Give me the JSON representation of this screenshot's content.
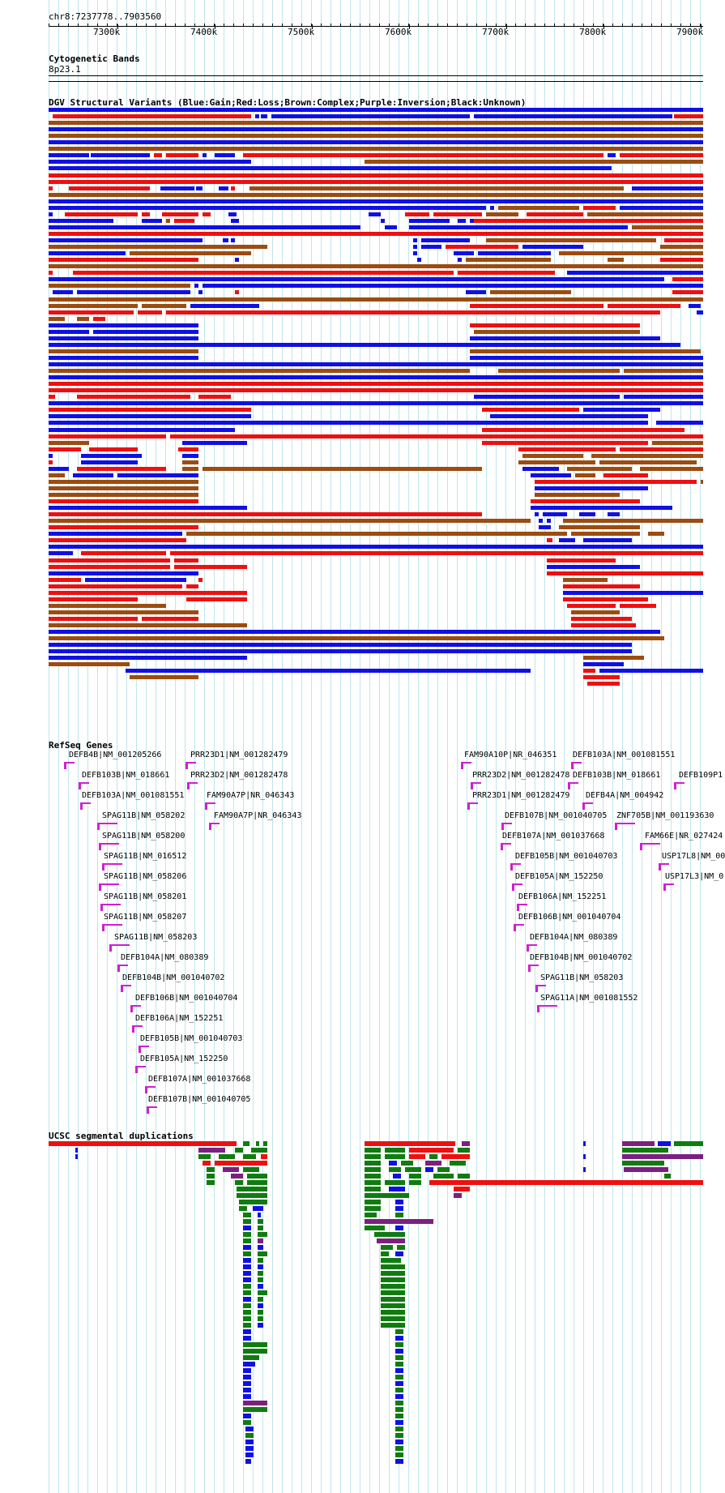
{
  "ruler": {
    "position": "chr8:7237778..7903560",
    "ticks": [
      "7300k",
      "7400k",
      "7500k",
      "7600k",
      "7700k",
      "7800k",
      "7900k"
    ]
  },
  "cytoband": {
    "title": "Cytogenetic Bands",
    "band": "8p23.1"
  },
  "dgv": {
    "title": "DGV Structural Variants (Blue:Gain;Red:Loss;Brown:Complex;Purple:Inversion;Black:Unknown)"
  },
  "refseq": {
    "title": "RefSeq Genes",
    "genes": [
      "DEFB4B|NM_001205266",
      "DEFB103B|NM_018661",
      "DEFB103A|NM_001081551",
      "SPAG11B|NM_058202",
      "SPAG11B|NM_058200",
      "SPAG11B|NM_016512",
      "SPAG11B|NM_058206",
      "SPAG11B|NM_058201",
      "SPAG11B|NM_058207",
      "SPAG11B|NM_058203",
      "DEFB104A|NM_080389",
      "DEFB104B|NM_001040702",
      "DEFB106B|NM_001040704",
      "DEFB106A|NM_152251",
      "DEFB105B|NM_001040703",
      "DEFB105A|NM_152250",
      "DEFB107A|NM_001037668",
      "DEFB107B|NM_001040705",
      "PRR23D1|NM_001282479",
      "PRR23D2|NM_001282478",
      "FAM90A7P|NR_046343",
      "FAM90A7P|NR_046343",
      "FAM90A10P|NR_046351",
      "PRR23D2|NM_001282478",
      "PRR23D1|NM_001282479",
      "DEFB107B|NM_001040705",
      "DEFB107A|NM_001037668",
      "DEFB105B|NM_001040703",
      "DEFB105A|NM_152250",
      "DEFB106A|NM_152251",
      "DEFB106B|NM_001040704",
      "DEFB104A|NM_080389",
      "DEFB104B|NM_001040702",
      "SPAG11B|NM_058203",
      "SPAG11A|NM_001081552",
      "DEFB103A|NM_001081551",
      "DEFB103B|NM_018661",
      "DEFB4A|NM_004942",
      "ZNF705B|NM_001193630",
      "FAM66E|NR_027424",
      "USP17L8|NM_00",
      "USP17L3|NM_0",
      "DEFB109P1"
    ]
  },
  "segdups": {
    "title": "UCSC segmental duplications"
  },
  "colors": {
    "gain": "#1010e6",
    "loss": "#ee1010",
    "complex": "#9c4c10",
    "gene": "#d020d0",
    "segGreen": "#107c10",
    "segPurple": "#7c2080",
    "segBlue": "#1010e6",
    "segRed": "#ee1010",
    "grid": "#bfe6ec"
  }
}
